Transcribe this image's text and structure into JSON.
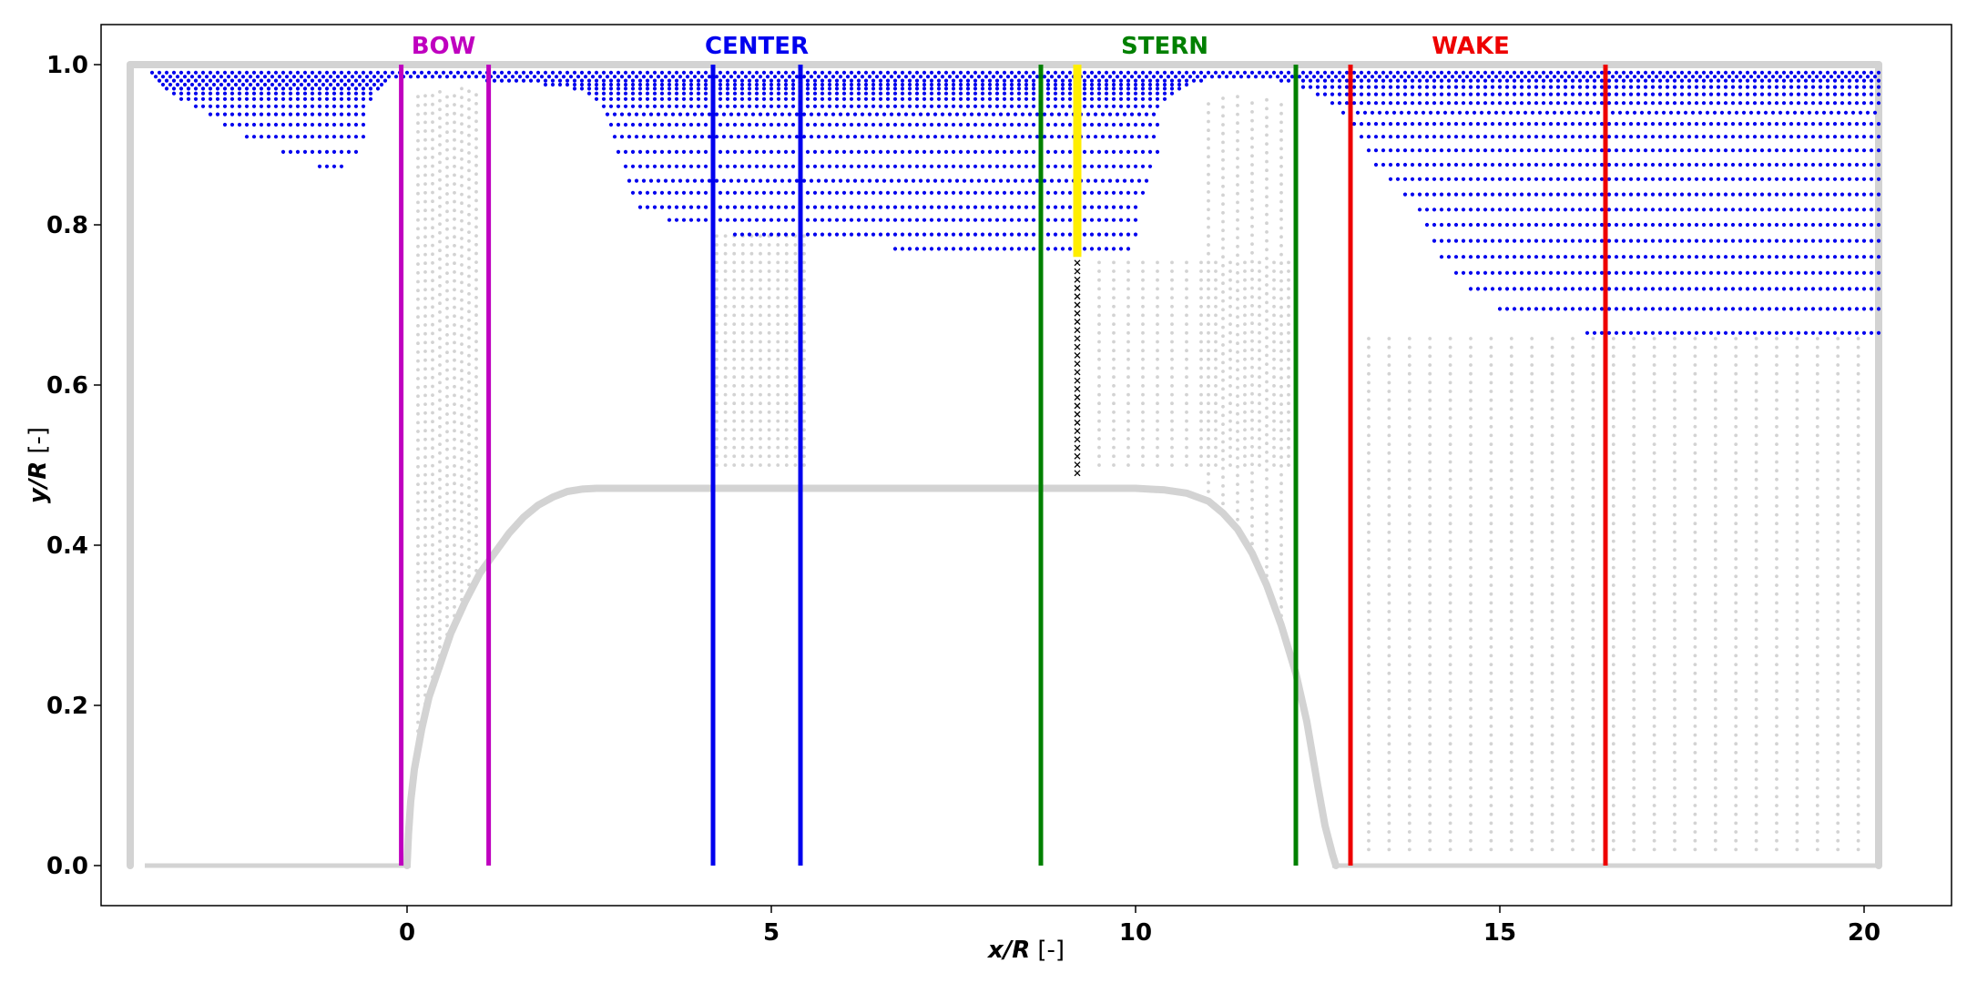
{
  "chart_data": {
    "type": "scatter",
    "title": "",
    "xlabel": {
      "var": "x/R",
      "unit": "[-]"
    },
    "ylabel": {
      "var": "y/R",
      "unit": "[-]"
    },
    "xlim": [
      -4.2,
      21.2
    ],
    "ylim": [
      -0.05,
      1.05
    ],
    "xticks": [
      0,
      5,
      10,
      15,
      20
    ],
    "xtick_labels": [
      "0",
      "5",
      "10",
      "15",
      "20"
    ],
    "yticks": [
      0.0,
      0.2,
      0.4,
      0.6,
      0.8,
      1.0
    ],
    "ytick_labels": [
      "0.0",
      "0.2",
      "0.4",
      "0.6",
      "0.8",
      "1.0"
    ],
    "grid": false,
    "regions": [
      {
        "name": "BOW",
        "label_x": 0.5,
        "lines": [
          -0.08,
          1.12
        ],
        "color": "#bf00bf"
      },
      {
        "name": "CENTER",
        "label_x": 4.8,
        "lines": [
          4.2,
          5.4
        ],
        "color": "#0000ee"
      },
      {
        "name": "STERN",
        "label_x": 10.4,
        "lines": [
          8.7,
          12.2
        ],
        "color": "#008000"
      },
      {
        "name": "WAKE",
        "label_x": 14.6,
        "lines": [
          12.95,
          16.45
        ],
        "color": "#ee0000"
      }
    ],
    "highlight": {
      "x": 9.2,
      "y_range": [
        0.76,
        1.0
      ],
      "color": "#ffee00"
    },
    "probe_line": {
      "x": 9.2,
      "y_range": [
        0.49,
        0.76
      ],
      "marker": "x",
      "color": "#000000"
    },
    "body_profile": {
      "color": "#d3d3d3",
      "x": [
        0.0,
        0.02,
        0.05,
        0.1,
        0.2,
        0.3,
        0.45,
        0.6,
        0.8,
        1.0,
        1.2,
        1.4,
        1.6,
        1.8,
        2.0,
        2.2,
        2.4,
        2.6,
        2.8,
        3.0,
        4.0,
        5.0,
        6.0,
        7.0,
        8.0,
        9.0,
        10.0,
        10.4,
        10.7,
        11.0,
        11.2,
        11.4,
        11.6,
        11.8,
        12.0,
        12.2,
        12.35,
        12.5,
        12.6,
        12.7,
        12.75
      ],
      "y": [
        0.0,
        0.04,
        0.08,
        0.12,
        0.17,
        0.21,
        0.25,
        0.29,
        0.33,
        0.365,
        0.39,
        0.415,
        0.435,
        0.45,
        0.46,
        0.467,
        0.47,
        0.471,
        0.471,
        0.471,
        0.471,
        0.471,
        0.471,
        0.471,
        0.471,
        0.471,
        0.471,
        0.469,
        0.465,
        0.455,
        0.44,
        0.42,
        0.39,
        0.35,
        0.3,
        0.24,
        0.18,
        0.1,
        0.05,
        0.015,
        0.0
      ]
    },
    "domain_boundary": {
      "color": "#d3d3d3",
      "x_left": -3.8,
      "x_right": 20.2,
      "y_bottom": 0.0,
      "y_top": 1.0
    },
    "outer_grid_columns": [
      {
        "x_start": 0.15,
        "x_end": 1.0,
        "step": 0.1,
        "y_top": 0.97,
        "bottom": "body"
      },
      {
        "x_start": 4.25,
        "x_end": 5.45,
        "step": 0.12,
        "y_top": 0.79,
        "y_bottom": 0.5
      },
      {
        "x_start": 9.5,
        "x_end": 12.2,
        "step": 0.2,
        "y_top": 0.76,
        "y_bottom": 0.5
      },
      {
        "x_start": 11.0,
        "x_end": 12.3,
        "step": 0.2,
        "y_top": 0.96,
        "bottom": "body"
      },
      {
        "x_start": 13.2,
        "x_end": 20.0,
        "step": 0.28,
        "y_top": 0.66,
        "y_bottom": 0.02
      }
    ],
    "series": [
      {
        "name": "boundary-layer points",
        "color": "#0000ee",
        "rows": [
          {
            "y": 0.99,
            "x_range": [
              -3.5,
              20.2
            ]
          },
          {
            "y": 0.985,
            "x_range": [
              -3.45,
              20.2
            ]
          },
          {
            "y": 0.98,
            "x_range": [
              -3.4,
              -0.3
            ]
          },
          {
            "y": 0.975,
            "x_range": [
              -3.35,
              -0.35
            ]
          },
          {
            "y": 0.97,
            "x_range": [
              -3.3,
              -0.4
            ]
          },
          {
            "y": 0.964,
            "x_range": [
              -3.2,
              -0.45
            ]
          },
          {
            "y": 0.957,
            "x_range": [
              -3.1,
              -0.5
            ]
          },
          {
            "y": 0.948,
            "x_range": [
              -2.9,
              -0.55
            ]
          },
          {
            "y": 0.938,
            "x_range": [
              -2.7,
              -0.6
            ]
          },
          {
            "y": 0.925,
            "x_range": [
              -2.5,
              -0.6
            ]
          },
          {
            "y": 0.91,
            "x_range": [
              -2.2,
              -0.6
            ]
          },
          {
            "y": 0.891,
            "x_range": [
              -1.7,
              -0.7
            ]
          },
          {
            "y": 0.873,
            "x_range": [
              -1.2,
              -0.9
            ]
          },
          {
            "y": 0.98,
            "x_range": [
              1.1,
              10.9
            ]
          },
          {
            "y": 0.975,
            "x_range": [
              1.9,
              10.75
            ]
          },
          {
            "y": 0.97,
            "x_range": [
              2.3,
              10.6
            ]
          },
          {
            "y": 0.964,
            "x_range": [
              2.5,
              10.5
            ]
          },
          {
            "y": 0.957,
            "x_range": [
              2.6,
              10.4
            ]
          },
          {
            "y": 0.948,
            "x_range": [
              2.7,
              10.35
            ]
          },
          {
            "y": 0.938,
            "x_range": [
              2.75,
              10.3
            ]
          },
          {
            "y": 0.925,
            "x_range": [
              2.8,
              10.3
            ]
          },
          {
            "y": 0.91,
            "x_range": [
              2.85,
              10.3
            ]
          },
          {
            "y": 0.891,
            "x_range": [
              2.9,
              10.3
            ]
          },
          {
            "y": 0.873,
            "x_range": [
              3.0,
              10.25
            ]
          },
          {
            "y": 0.855,
            "x_range": [
              3.05,
              10.2
            ]
          },
          {
            "y": 0.84,
            "x_range": [
              3.1,
              10.15
            ]
          },
          {
            "y": 0.822,
            "x_range": [
              3.2,
              10.0
            ]
          },
          {
            "y": 0.806,
            "x_range": [
              3.6,
              10.0
            ]
          },
          {
            "y": 0.788,
            "x_range": [
              4.5,
              10.0
            ]
          },
          {
            "y": 0.77,
            "x_range": [
              6.7,
              9.9
            ]
          },
          {
            "y": 0.98,
            "x_range": [
              12.0,
              20.2
            ]
          },
          {
            "y": 0.972,
            "x_range": [
              12.3,
              20.2
            ]
          },
          {
            "y": 0.963,
            "x_range": [
              12.5,
              20.2
            ]
          },
          {
            "y": 0.952,
            "x_range": [
              12.7,
              20.2
            ]
          },
          {
            "y": 0.94,
            "x_range": [
              12.85,
              20.2
            ]
          },
          {
            "y": 0.926,
            "x_range": [
              13.0,
              20.2
            ]
          },
          {
            "y": 0.91,
            "x_range": [
              13.1,
              20.2
            ]
          },
          {
            "y": 0.893,
            "x_range": [
              13.2,
              20.2
            ]
          },
          {
            "y": 0.875,
            "x_range": [
              13.3,
              20.2
            ]
          },
          {
            "y": 0.857,
            "x_range": [
              13.5,
              20.2
            ]
          },
          {
            "y": 0.838,
            "x_range": [
              13.7,
              20.2
            ]
          },
          {
            "y": 0.819,
            "x_range": [
              13.9,
              20.2
            ]
          },
          {
            "y": 0.8,
            "x_range": [
              14.0,
              20.2
            ]
          },
          {
            "y": 0.78,
            "x_range": [
              14.1,
              20.2
            ]
          },
          {
            "y": 0.76,
            "x_range": [
              14.2,
              20.2
            ]
          },
          {
            "y": 0.74,
            "x_range": [
              14.4,
              20.2
            ]
          },
          {
            "y": 0.72,
            "x_range": [
              14.6,
              20.2
            ]
          },
          {
            "y": 0.695,
            "x_range": [
              15.0,
              20.2
            ]
          },
          {
            "y": 0.665,
            "x_range": [
              16.2,
              20.2
            ]
          }
        ]
      }
    ]
  }
}
